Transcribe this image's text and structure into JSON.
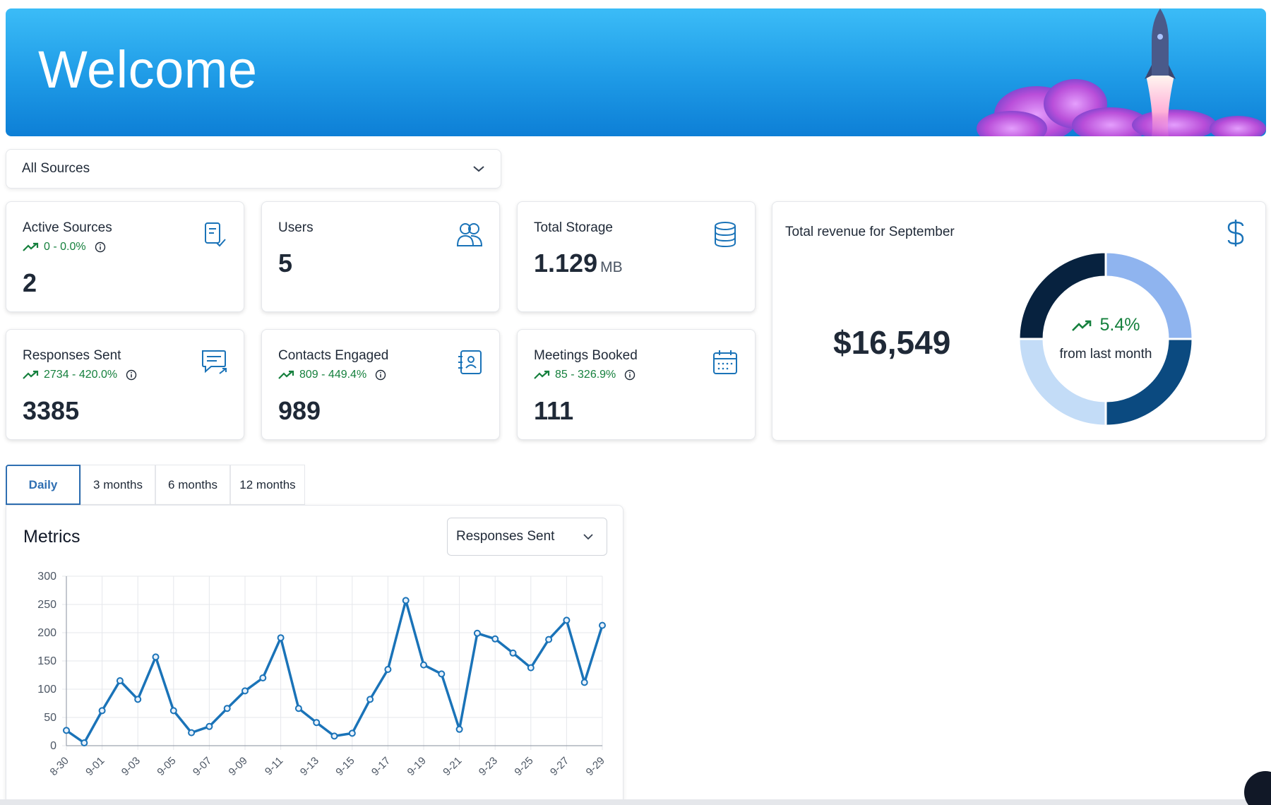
{
  "banner": {
    "title": "Welcome"
  },
  "source_filter": {
    "selected": "All Sources"
  },
  "stats": [
    {
      "label": "Active Sources",
      "trend": "0 - 0.0%",
      "value": "2",
      "icon": "checklist-icon"
    },
    {
      "label": "Users",
      "value": "5",
      "icon": "users-icon"
    },
    {
      "label": "Total Storage",
      "value": "1.129",
      "unit": "MB",
      "icon": "database-icon"
    },
    {
      "label": "Responses Sent",
      "trend": "2734 - 420.0%",
      "value": "3385",
      "icon": "chat-icon"
    },
    {
      "label": "Contacts Engaged",
      "trend": "809 - 449.4%",
      "value": "989",
      "icon": "contacts-icon"
    },
    {
      "label": "Meetings Booked",
      "trend": "85 - 326.9%",
      "value": "111",
      "icon": "calendar-icon"
    }
  ],
  "revenue": {
    "title": "Total revenue for September",
    "amount": "$16,549",
    "change": "5.4%",
    "change_label": "from last month",
    "donut_segments": [
      {
        "value": 25,
        "color": "#8fb4ef"
      },
      {
        "value": 25,
        "color": "#0b4a80"
      },
      {
        "value": 25,
        "color": "#c3dcf7"
      },
      {
        "value": 25,
        "color": "#07223f"
      }
    ]
  },
  "tabs": [
    "Daily",
    "3 months",
    "6 months",
    "12 months"
  ],
  "active_tab": "Daily",
  "metrics": {
    "title": "Metrics",
    "selected_metric": "Responses Sent"
  },
  "colors": {
    "accent": "#1a73b8",
    "trend_green": "#15803d"
  },
  "chart_data": {
    "type": "line",
    "x": [
      "08-30",
      "08-31",
      "09-01",
      "09-02",
      "09-03",
      "09-04",
      "09-05",
      "09-06",
      "09-07",
      "09-08",
      "09-09",
      "09-10",
      "09-11",
      "09-12",
      "09-13",
      "09-14",
      "09-15",
      "09-16",
      "09-17",
      "09-18",
      "09-19",
      "09-20",
      "09-21",
      "09-22",
      "09-23",
      "09-24",
      "09-25",
      "09-26",
      "09-27",
      "09-28",
      "09-29"
    ],
    "tick_labels": [
      "8-30",
      "9-01",
      "9-03",
      "9-05",
      "9-07",
      "9-09",
      "9-11",
      "9-13",
      "9-15",
      "9-17",
      "9-19",
      "9-21",
      "9-23",
      "9-25",
      "9-27",
      "9-29"
    ],
    "series": [
      {
        "values": [
          27,
          5,
          62,
          115,
          82,
          157,
          62,
          23,
          34,
          66,
          97,
          120,
          191,
          66,
          41,
          17,
          22,
          82,
          135,
          257,
          143,
          127,
          29,
          199,
          189,
          164,
          138,
          188,
          222,
          112,
          213
        ]
      }
    ],
    "ylim": [
      0,
      300
    ],
    "yticks": [
      0,
      50,
      100,
      150,
      200,
      250,
      300
    ],
    "grid": true,
    "color": "#1a73b8"
  }
}
